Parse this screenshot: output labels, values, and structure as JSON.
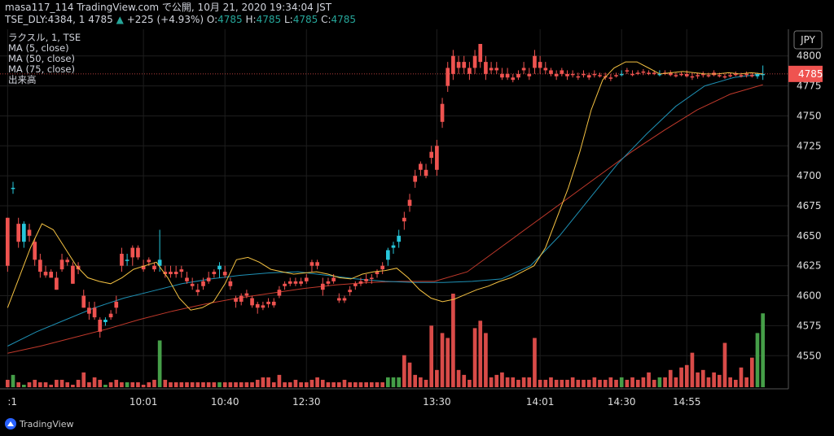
{
  "header": {
    "line1": "masa117_114 TradingView.com で公開, 10月 21, 2020 19:34:04 JST",
    "symbol": "TSE_DLY:4384, 1",
    "last": "4785",
    "change_arrow": "▲",
    "change": "+225 (+4.93%)",
    "o_label": "O:",
    "o_value": "4785",
    "h_label": "H:",
    "h_value": "4785",
    "l_label": "L:",
    "l_value": "4785",
    "c_label": "C:",
    "c_value": "4785"
  },
  "legend": [
    "ラクスル, 1, TSE",
    "MA (5, close)",
    "MA (50, close)",
    "MA (75, close)",
    "出来高"
  ],
  "watermark": "TradingView",
  "chart_data": {
    "type": "candlestick",
    "currency": "JPY",
    "last_price": 4785,
    "ylim": [
      4540,
      4810
    ],
    "y_ticks": [
      4550,
      4575,
      4600,
      4625,
      4650,
      4675,
      4700,
      4725,
      4750,
      4775,
      4800
    ],
    "x_ticks": [
      {
        "label": ":1",
        "index": 0
      },
      {
        "label": "10:01",
        "index": 25
      },
      {
        "label": "10:40",
        "index": 40
      },
      {
        "label": "12:30",
        "index": 55
      },
      {
        "label": "13:30",
        "index": 79
      },
      {
        "label": "14:01",
        "index": 98
      },
      {
        "label": "14:30",
        "index": 113
      },
      {
        "label": "14:55",
        "index": 125
      }
    ],
    "candles": [
      [
        4665,
        4665,
        4620,
        4625,
        3
      ],
      [
        4690,
        4695,
        4685,
        4690,
        5
      ],
      [
        4660,
        4665,
        4640,
        4645,
        2
      ],
      [
        4645,
        4662,
        4640,
        4660,
        1
      ],
      [
        4655,
        4660,
        4645,
        4650,
        2
      ],
      [
        4645,
        4648,
        4625,
        4630,
        3
      ],
      [
        4630,
        4635,
        4615,
        4620,
        2
      ],
      [
        4620,
        4625,
        4615,
        4617,
        2
      ],
      [
        4620,
        4622,
        4615,
        4615,
        1
      ],
      [
        4615,
        4620,
        4605,
        4605,
        3
      ],
      [
        4630,
        4635,
        4620,
        4622,
        3
      ],
      [
        4630,
        4632,
        4625,
        4628,
        2
      ],
      [
        4625,
        4628,
        4610,
        4610,
        1
      ],
      [
        4625,
        4628,
        4618,
        4622,
        3
      ],
      [
        4600,
        4605,
        4590,
        4590,
        6
      ],
      [
        4590,
        4595,
        4580,
        4585,
        2
      ],
      [
        4590,
        4595,
        4580,
        4582,
        4
      ],
      [
        4580,
        4582,
        4565,
        4570,
        3
      ],
      [
        4578,
        4582,
        4575,
        4580,
        1
      ],
      [
        4585,
        4588,
        4580,
        4582,
        2
      ],
      [
        4595,
        4600,
        4585,
        4590,
        3
      ],
      [
        4635,
        4640,
        4620,
        4625,
        2
      ],
      [
        4630,
        4635,
        4625,
        4630,
        2
      ],
      [
        4640,
        4642,
        4625,
        4632,
        2
      ],
      [
        4640,
        4642,
        4630,
        4632,
        2
      ],
      [
        4625,
        4630,
        4620,
        4622,
        1
      ],
      [
        4630,
        4632,
        4625,
        4628,
        2
      ],
      [
        4625,
        4628,
        4620,
        4622,
        3
      ],
      [
        4625,
        4655,
        4620,
        4630,
        19
      ],
      [
        4620,
        4625,
        4615,
        4618,
        3
      ],
      [
        4620,
        4625,
        4615,
        4618,
        2
      ],
      [
        4620,
        4625,
        4615,
        4618,
        2
      ],
      [
        4622,
        4625,
        4615,
        4620,
        2
      ],
      [
        4615,
        4620,
        4610,
        4612,
        2
      ],
      [
        4610,
        4615,
        4605,
        4608,
        2
      ],
      [
        4605,
        4610,
        4600,
        4603,
        2
      ],
      [
        4612,
        4615,
        4605,
        4608,
        2
      ],
      [
        4615,
        4620,
        4610,
        4612,
        2
      ],
      [
        4620,
        4622,
        4615,
        4618,
        2
      ],
      [
        4622,
        4628,
        4615,
        4625,
        2
      ],
      [
        4620,
        4625,
        4615,
        4617,
        2
      ],
      [
        4612,
        4615,
        4605,
        4608,
        2
      ],
      [
        4598,
        4600,
        4590,
        4595,
        2
      ],
      [
        4600,
        4602,
        4592,
        4595,
        2
      ],
      [
        4602,
        4605,
        4598,
        4600,
        2
      ],
      [
        4598,
        4600,
        4590,
        4592,
        2
      ],
      [
        4593,
        4595,
        4585,
        4590,
        3
      ],
      [
        4592,
        4595,
        4588,
        4590,
        4
      ],
      [
        4595,
        4598,
        4590,
        4593,
        4
      ],
      [
        4595,
        4598,
        4590,
        4592,
        2
      ],
      [
        4605,
        4608,
        4598,
        4600,
        5
      ],
      [
        4610,
        4612,
        4605,
        4608,
        2
      ],
      [
        4612,
        4615,
        4608,
        4610,
        2
      ],
      [
        4612,
        4615,
        4608,
        4610,
        3
      ],
      [
        4612,
        4615,
        4608,
        4610,
        2
      ],
      [
        4615,
        4618,
        4610,
        4612,
        2
      ],
      [
        4628,
        4630,
        4620,
        4625,
        3
      ],
      [
        4628,
        4630,
        4622,
        4625,
        4
      ],
      [
        4610,
        4615,
        4600,
        4605,
        3
      ],
      [
        4612,
        4615,
        4608,
        4610,
        2
      ],
      [
        4615,
        4618,
        4610,
        4612,
        2
      ],
      [
        4598,
        4602,
        4594,
        4596,
        2
      ],
      [
        4598,
        4600,
        4594,
        4596,
        3
      ],
      [
        4605,
        4608,
        4600,
        4603,
        2
      ],
      [
        4610,
        4612,
        4605,
        4608,
        2
      ],
      [
        4612,
        4615,
        4608,
        4610,
        2
      ],
      [
        4614,
        4618,
        4610,
        4612,
        2
      ],
      [
        4615,
        4618,
        4610,
        4614,
        2
      ],
      [
        4620,
        4622,
        4615,
        4618,
        2
      ],
      [
        4625,
        4628,
        4618,
        4622,
        2
      ],
      [
        4630,
        4640,
        4625,
        4638,
        4
      ],
      [
        4640,
        4645,
        4635,
        4642,
        4
      ],
      [
        4645,
        4655,
        4640,
        4650,
        4
      ],
      [
        4665,
        4670,
        4655,
        4662,
        13
      ],
      [
        4680,
        4685,
        4670,
        4675,
        10
      ],
      [
        4700,
        4705,
        4690,
        4695,
        5
      ],
      [
        4710,
        4712,
        4700,
        4705,
        4
      ],
      [
        4705,
        4710,
        4698,
        4700,
        3
      ],
      [
        4720,
        4725,
        4710,
        4715,
        25
      ],
      [
        4725,
        4730,
        4700,
        4705,
        7
      ],
      [
        4760,
        4765,
        4740,
        4745,
        22
      ],
      [
        4790,
        4795,
        4770,
        4775,
        20
      ],
      [
        4800,
        4805,
        4780,
        4785,
        38
      ],
      [
        4795,
        4800,
        4785,
        4790,
        7
      ],
      [
        4795,
        4800,
        4785,
        4790,
        5
      ],
      [
        4790,
        4795,
        4780,
        4785,
        3
      ],
      [
        4800,
        4805,
        4785,
        4790,
        24
      ],
      [
        4810,
        4810,
        4790,
        4795,
        27
      ],
      [
        4795,
        4800,
        4780,
        4785,
        22
      ],
      [
        4790,
        4795,
        4785,
        4788,
        4
      ],
      [
        4790,
        4795,
        4785,
        4788,
        5
      ],
      [
        4785,
        4790,
        4780,
        4782,
        6
      ],
      [
        4785,
        4790,
        4780,
        4782,
        4
      ],
      [
        4782,
        4785,
        4778,
        4780,
        4
      ],
      [
        4785,
        4788,
        4780,
        4782,
        3
      ],
      [
        4790,
        4795,
        4785,
        4788,
        4
      ],
      [
        4785,
        4790,
        4780,
        4783,
        4
      ],
      [
        4800,
        4805,
        4785,
        4790,
        20
      ],
      [
        4795,
        4800,
        4785,
        4790,
        3
      ],
      [
        4790,
        4795,
        4785,
        4788,
        3
      ],
      [
        4788,
        4790,
        4783,
        4785,
        4
      ],
      [
        4785,
        4788,
        4780,
        4783,
        3
      ],
      [
        4788,
        4790,
        4783,
        4785,
        3
      ],
      [
        4785,
        4788,
        4780,
        4783,
        3
      ],
      [
        4785,
        4788,
        4782,
        4784,
        4
      ],
      [
        4783,
        4786,
        4780,
        4782,
        3
      ],
      [
        4785,
        4788,
        4782,
        4784,
        3
      ],
      [
        4784,
        4786,
        4780,
        4782,
        3
      ],
      [
        4785,
        4788,
        4782,
        4784,
        4
      ],
      [
        4784,
        4786,
        4782,
        4783,
        3
      ],
      [
        4783,
        4786,
        4780,
        4782,
        3
      ],
      [
        4782,
        4785,
        4779,
        4781,
        4
      ],
      [
        4784,
        4786,
        4782,
        4783,
        3
      ],
      [
        4785,
        4788,
        4783,
        4785,
        4
      ],
      [
        4788,
        4790,
        4785,
        4787,
        3
      ],
      [
        4785,
        4788,
        4783,
        4784,
        4
      ],
      [
        4786,
        4788,
        4784,
        4785,
        3
      ],
      [
        4787,
        4789,
        4784,
        4786,
        4
      ],
      [
        4786,
        4788,
        4784,
        4785,
        6
      ],
      [
        4786,
        4788,
        4784,
        4785,
        3
      ],
      [
        4785,
        4788,
        4783,
        4785,
        4
      ],
      [
        4786,
        4788,
        4784,
        4785,
        4
      ],
      [
        4786,
        4788,
        4783,
        4784,
        7
      ],
      [
        4784,
        4786,
        4782,
        4783,
        4
      ],
      [
        4785,
        4787,
        4783,
        4784,
        8
      ],
      [
        4785,
        4788,
        4782,
        4783,
        9
      ],
      [
        4783,
        4786,
        4780,
        4782,
        14
      ],
      [
        4784,
        4786,
        4781,
        4783,
        6
      ],
      [
        4785,
        4787,
        4782,
        4784,
        7
      ],
      [
        4784,
        4786,
        4782,
        4783,
        4
      ],
      [
        4786,
        4788,
        4783,
        4784,
        6
      ],
      [
        4784,
        4786,
        4782,
        4783,
        5
      ],
      [
        4783,
        4785,
        4781,
        4782,
        18
      ],
      [
        4784,
        4786,
        4782,
        4783,
        4
      ],
      [
        4785,
        4787,
        4783,
        4784,
        3
      ],
      [
        4784,
        4786,
        4782,
        4783,
        8
      ],
      [
        4785,
        4787,
        4782,
        4784,
        4
      ],
      [
        4784,
        4786,
        4782,
        4783,
        12
      ],
      [
        4783,
        4786,
        4781,
        4785,
        22
      ],
      [
        4785,
        4792,
        4780,
        4785,
        30
      ]
    ],
    "ma5": [
      4590,
      4615,
      4640,
      4660,
      4655,
      4640,
      4625,
      4615,
      4612,
      4610,
      4615,
      4622,
      4625,
      4628,
      4615,
      4598,
      4588,
      4590,
      4595,
      4610,
      4630,
      4632,
      4628,
      4622,
      4620,
      4618,
      4619,
      4620,
      4618,
      4615,
      4614,
      4618,
      4620,
      4621,
      4623,
      4615,
      4605,
      4598,
      4595,
      4597,
      4601,
      4605,
      4608,
      4612,
      4615,
      4620,
      4625,
      4640,
      4665,
      4690,
      4720,
      4755,
      4780,
      4790,
      4795,
      4795,
      4790,
      4785,
      4786,
      4787,
      4786,
      4785,
      4785,
      4786,
      4785,
      4786,
      4785
    ],
    "ma50": [
      4558,
      4570,
      4580,
      4590,
      4598,
      4604,
      4610,
      4614,
      4617,
      4619,
      4620,
      4617,
      4614,
      4612,
      4611,
      4611,
      4612,
      4614,
      4625,
      4650,
      4680,
      4710,
      4735,
      4758,
      4775,
      4782,
      4785
    ],
    "ma75": [
      4552,
      4558,
      4565,
      4572,
      4580,
      4587,
      4593,
      4598,
      4602,
      4606,
      4609,
      4611,
      4612,
      4612,
      4620,
      4640,
      4660,
      4680,
      4700,
      4720,
      4738,
      4755,
      4768,
      4776
    ],
    "colors": {
      "up": "#26c6da",
      "down": "#ef5350",
      "vol_up": "#4caf50",
      "vol_down": "#ef5350",
      "ma5": "#f5c242",
      "ma50": "#1e90b4",
      "ma75": "#c0392b",
      "price_tag": "#ef5350"
    }
  }
}
